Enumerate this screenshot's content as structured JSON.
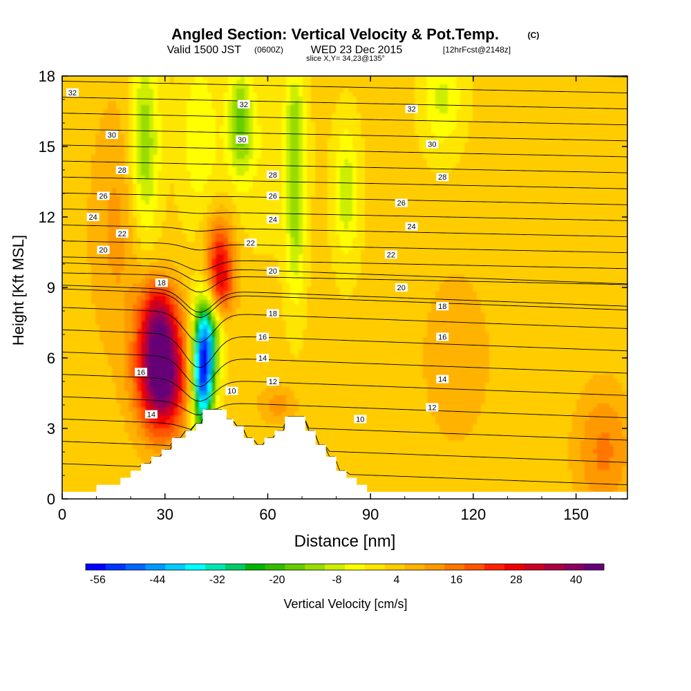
{
  "chart_data": {
    "type": "heatmap",
    "title": "Angled Section: Vertical Velocity & Pot.Temp.",
    "title_unit": "(C)",
    "subtitle_main": "Valid 1500 JST",
    "subtitle_utc": "(0600Z)",
    "subtitle_date": "WED 23 Dec 2015",
    "subtitle_fcst": "[12hrFcst@2148z]",
    "slice_note": "slice X,Y= 34,23@135°",
    "xlabel": "Distance [nm]",
    "ylabel": "Height [Kft MSL]",
    "xlim": [
      0,
      165
    ],
    "ylim": [
      0,
      18
    ],
    "xticks": [
      0,
      30,
      60,
      90,
      120,
      150
    ],
    "yticks": [
      0,
      3,
      6,
      9,
      12,
      15,
      18
    ],
    "colorbar": {
      "label": "Vertical Velocity [cm/s]",
      "tick_labels": [
        "-56",
        "-44",
        "-32",
        "-20",
        "-8",
        "4",
        "16",
        "28",
        "40"
      ],
      "colors": [
        "#0000ff",
        "#0033ff",
        "#0066ff",
        "#0099ff",
        "#00ccff",
        "#00ffff",
        "#00e6b3",
        "#00cc66",
        "#00b300",
        "#33bb00",
        "#66cc00",
        "#99dd00",
        "#ccee00",
        "#ffff00",
        "#ffe600",
        "#ffcc00",
        "#ffb300",
        "#ff9900",
        "#ff7700",
        "#ff5500",
        "#ff2200",
        "#ee0000",
        "#cc0022",
        "#aa0044",
        "#88005f",
        "#660077"
      ]
    },
    "terrain": [
      [
        0,
        0.3
      ],
      [
        10,
        0.3
      ],
      [
        10,
        0.6
      ],
      [
        17,
        0.6
      ],
      [
        17,
        0.9
      ],
      [
        20,
        0.9
      ],
      [
        20,
        1.2
      ],
      [
        23,
        1.2
      ],
      [
        23,
        1.5
      ],
      [
        26,
        1.5
      ],
      [
        26,
        1.8
      ],
      [
        29,
        1.8
      ],
      [
        29,
        2.1
      ],
      [
        32,
        2.1
      ],
      [
        32,
        2.6
      ],
      [
        36,
        2.6
      ],
      [
        36,
        2.9
      ],
      [
        39,
        2.9
      ],
      [
        39,
        3.2
      ],
      [
        41,
        3.2
      ],
      [
        41,
        3.8
      ],
      [
        48,
        3.8
      ],
      [
        48,
        3.4
      ],
      [
        50,
        3.4
      ],
      [
        50,
        3.1
      ],
      [
        53,
        3.1
      ],
      [
        53,
        2.6
      ],
      [
        56,
        2.6
      ],
      [
        56,
        2.3
      ],
      [
        59,
        2.3
      ],
      [
        59,
        2.6
      ],
      [
        62,
        2.6
      ],
      [
        62,
        2.9
      ],
      [
        65,
        2.9
      ],
      [
        65,
        3.5
      ],
      [
        71,
        3.5
      ],
      [
        71,
        2.9
      ],
      [
        74,
        2.9
      ],
      [
        74,
        2.3
      ],
      [
        77,
        2.3
      ],
      [
        77,
        1.8
      ],
      [
        80,
        1.8
      ],
      [
        80,
        1.2
      ],
      [
        83,
        1.2
      ],
      [
        83,
        0.9
      ],
      [
        86,
        0.9
      ],
      [
        86,
        0.6
      ],
      [
        89,
        0.6
      ],
      [
        89,
        0.3
      ],
      [
        165,
        0.3
      ]
    ],
    "velocity_features": [
      {
        "x": 29,
        "y": 5.2,
        "sx": 5,
        "sy": 1.7,
        "value": 46
      },
      {
        "x": 28,
        "y": 7.8,
        "sx": 4,
        "sy": 1.2,
        "value": 22
      },
      {
        "x": 46,
        "y": 10.2,
        "sx": 3,
        "sy": 1.3,
        "value": 24
      },
      {
        "x": 46,
        "y": 8.8,
        "sx": 3,
        "sy": 0.8,
        "value": 12
      },
      {
        "x": 16,
        "y": 11.5,
        "sx": 6,
        "sy": 4,
        "value": 8
      },
      {
        "x": 63,
        "y": 4.0,
        "sx": 4,
        "sy": 0.6,
        "value": 9
      },
      {
        "x": 158,
        "y": 2.0,
        "sx": 6,
        "sy": 2,
        "value": 12
      },
      {
        "x": 115,
        "y": 6.0,
        "sx": 8,
        "sy": 3,
        "value": 6
      },
      {
        "x": 41,
        "y": 5.2,
        "sx": 2.2,
        "sy": 1.7,
        "value": -50
      },
      {
        "x": 42.5,
        "y": 7.0,
        "sx": 2.6,
        "sy": 1.5,
        "value": -24
      },
      {
        "x": 24,
        "y": 15.0,
        "sx": 3,
        "sy": 2.8,
        "value": -18
      },
      {
        "x": 40,
        "y": 15.5,
        "sx": 4,
        "sy": 2.5,
        "value": -8
      },
      {
        "x": 52,
        "y": 16.0,
        "sx": 2.5,
        "sy": 1.5,
        "value": -18
      },
      {
        "x": 68,
        "y": 12.0,
        "sx": 2,
        "sy": 2.6,
        "value": -14
      },
      {
        "x": 68,
        "y": 16.5,
        "sx": 2,
        "sy": 1.5,
        "value": -10
      },
      {
        "x": 83,
        "y": 13.0,
        "sx": 2.5,
        "sy": 2,
        "value": -12
      },
      {
        "x": 111,
        "y": 17.0,
        "sx": 4,
        "sy": 1.5,
        "value": -10
      },
      {
        "x": 58,
        "y": 14.5,
        "sx": 8,
        "sy": 2.5,
        "value": -4
      }
    ],
    "theta_contour_labels": [
      {
        "value": "32",
        "x": 3,
        "y": 17.3
      },
      {
        "value": "32",
        "x": 53,
        "y": 16.8
      },
      {
        "value": "32",
        "x": 102,
        "y": 16.6
      },
      {
        "value": "30",
        "x": 14.5,
        "y": 15.5
      },
      {
        "value": "30",
        "x": 52.5,
        "y": 15.3
      },
      {
        "value": "30",
        "x": 108,
        "y": 15.1
      },
      {
        "value": "28",
        "x": 17.5,
        "y": 14.0
      },
      {
        "value": "28",
        "x": 61.5,
        "y": 13.8
      },
      {
        "value": "28",
        "x": 111,
        "y": 13.7
      },
      {
        "value": "26",
        "x": 12,
        "y": 12.9
      },
      {
        "value": "26",
        "x": 61.5,
        "y": 12.9
      },
      {
        "value": "26",
        "x": 99,
        "y": 12.6
      },
      {
        "value": "24",
        "x": 9,
        "y": 12.0
      },
      {
        "value": "24",
        "x": 61.5,
        "y": 11.9
      },
      {
        "value": "24",
        "x": 102,
        "y": 11.6
      },
      {
        "value": "22",
        "x": 17.5,
        "y": 11.3
      },
      {
        "value": "22",
        "x": 55,
        "y": 10.9
      },
      {
        "value": "22",
        "x": 96,
        "y": 10.4
      },
      {
        "value": "20",
        "x": 12,
        "y": 10.6
      },
      {
        "value": "20",
        "x": 61.5,
        "y": 9.7
      },
      {
        "value": "20",
        "x": 99,
        "y": 9.0
      },
      {
        "value": "18",
        "x": 29,
        "y": 9.2
      },
      {
        "value": "18",
        "x": 61.5,
        "y": 7.9
      },
      {
        "value": "18",
        "x": 111,
        "y": 8.2
      },
      {
        "value": "16",
        "x": 23,
        "y": 5.4
      },
      {
        "value": "16",
        "x": 58.5,
        "y": 6.9
      },
      {
        "value": "16",
        "x": 111,
        "y": 6.9
      },
      {
        "value": "14",
        "x": 26,
        "y": 3.6
      },
      {
        "value": "14",
        "x": 58.5,
        "y": 6.0
      },
      {
        "value": "14",
        "x": 111,
        "y": 5.1
      },
      {
        "value": "12",
        "x": 61.5,
        "y": 5.0
      },
      {
        "value": "12",
        "x": 108,
        "y": 3.9
      },
      {
        "value": "10",
        "x": 49.5,
        "y": 4.6
      },
      {
        "value": "10",
        "x": 87,
        "y": 3.4
      }
    ]
  }
}
